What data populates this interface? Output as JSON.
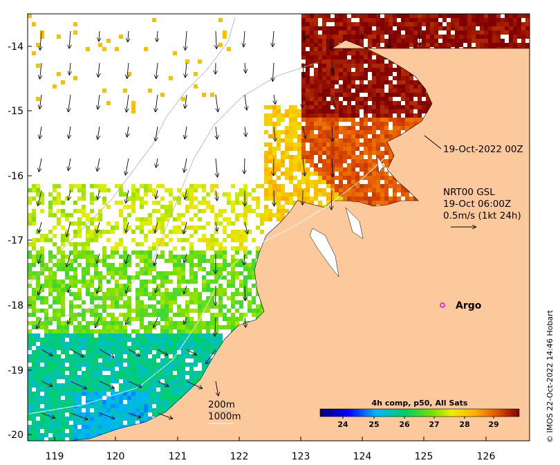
{
  "map": {
    "lon_ticks": [
      "119",
      "120",
      "121",
      "122",
      "123",
      "124",
      "125",
      "126"
    ],
    "lat_ticks": [
      "-14",
      "-15",
      "-16",
      "-17",
      "-18",
      "-19",
      "-20"
    ],
    "lon_range": [
      118.6,
      126.7
    ],
    "lat_range": [
      -20.1,
      -13.5
    ]
  },
  "labels": {
    "track_time": "19-Oct-2022 00Z",
    "current_line1": "NRT00 GSL",
    "current_line2": "19-Oct 06:00Z",
    "current_line3": "0.5m/s (1kt 24h)",
    "argo": "Argo",
    "isobath_200": "200m",
    "isobath_1000": "1000m",
    "credit": "© IMOS 22-Oct-2022 14:46 Hobart"
  },
  "colorbar": {
    "title": "4h comp, p50, All Sats",
    "ticks": [
      "24",
      "25",
      "26",
      "27",
      "28",
      "29"
    ],
    "range": [
      23,
      30
    ]
  },
  "colors": {
    "land": "#fbc99b",
    "cloud": "#ffffff",
    "argo": "#e600e6",
    "arrow": "#000000"
  }
}
